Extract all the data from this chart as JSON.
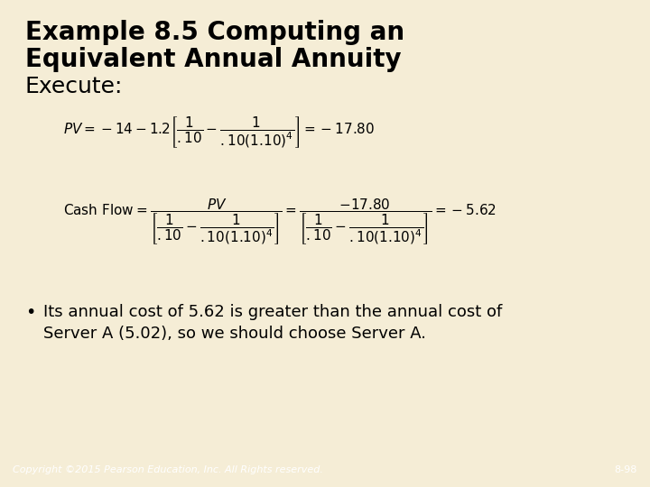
{
  "bg_color": "#F5EDD6",
  "footer_color": "#B03A2E",
  "title_line1": "Example 8.5 Computing an",
  "title_line2": "Equivalent Annual Annuity",
  "execute_label": "Execute:",
  "bullet_text_line1": "Its annual cost of 5.62 is greater than the annual cost of",
  "bullet_text_line2": "Server A (5.02), so we should choose Server A.",
  "footer_left": "Copyright ©2015 Pearson Education, Inc. All Rights reserved.",
  "footer_right": "8-98",
  "title_fontsize": 20,
  "execute_fontsize": 18,
  "formula_fontsize": 11,
  "bullet_fontsize": 13,
  "footer_fontsize": 8
}
